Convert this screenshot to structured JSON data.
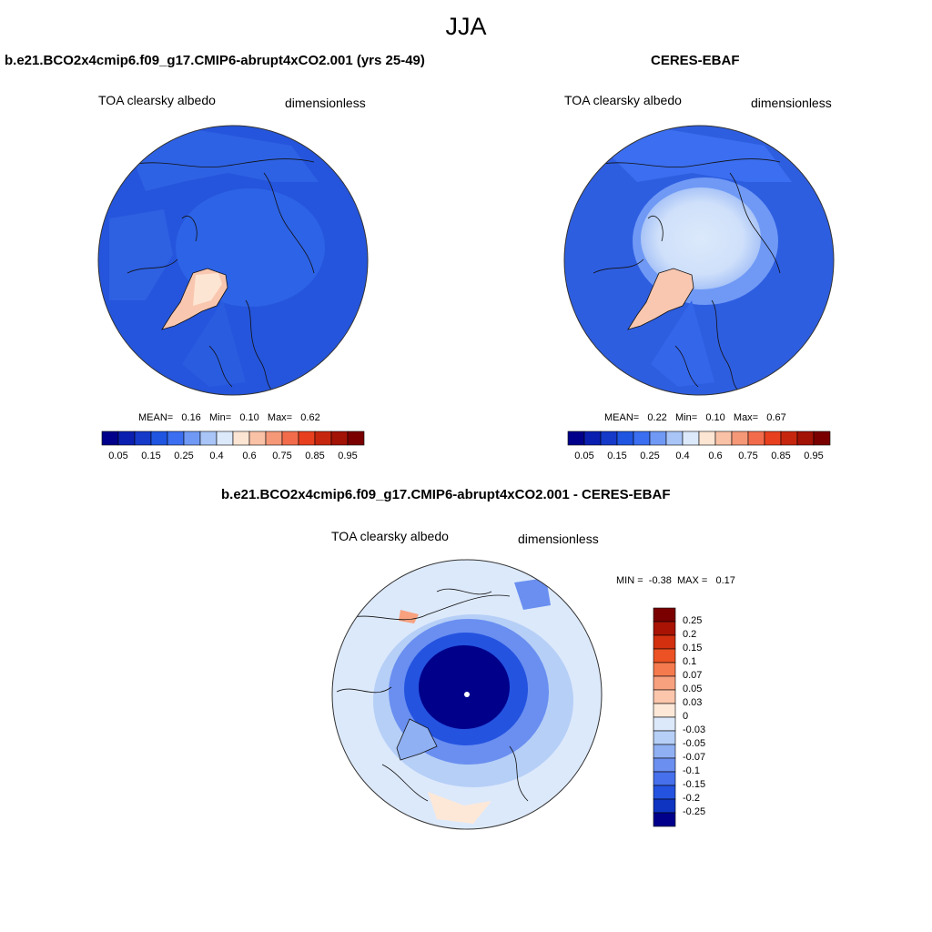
{
  "figure": {
    "title": "JJA"
  },
  "panels": [
    {
      "id": "model",
      "title": "b.e21.BCO2x4cmip6.f09_g17.CMIP6-abrupt4xCO2.001 (yrs 25-49)",
      "left_label": "TOA clearsky albedo",
      "right_label": "dimensionless",
      "stats": {
        "mean_label": "MEAN=",
        "mean": "0.16",
        "min_label": "Min=",
        "min": "0.10",
        "max_label": "Max=",
        "max": "0.62"
      }
    },
    {
      "id": "obs",
      "title": "CERES-EBAF",
      "left_label": "TOA clearsky albedo",
      "right_label": "dimensionless",
      "stats": {
        "mean_label": "MEAN=",
        "mean": "0.22",
        "min_label": "Min=",
        "min": "0.10",
        "max_label": "Max=",
        "max": "0.67"
      }
    }
  ],
  "diff": {
    "title": "b.e21.BCO2x4cmip6.f09_g17.CMIP6-abrupt4xCO2.001 - CERES-EBAF",
    "left_label": "TOA clearsky albedo",
    "right_label": "dimensionless",
    "minmax": {
      "min_label": "MIN =",
      "min": "-0.38",
      "max_label": "MAX =",
      "max": "0.17"
    }
  },
  "abs_colorbar": {
    "ticks": [
      "0.05",
      "0.15",
      "0.25",
      "0.4",
      "0.6",
      "0.75",
      "0.85",
      "0.95"
    ],
    "colors": [
      "#00008b",
      "#0a1fb0",
      "#1539c8",
      "#1f55e0",
      "#3b6ef0",
      "#6f99f5",
      "#a9c4f7",
      "#dce9fb",
      "#fde5d3",
      "#f9c1a6",
      "#f59878",
      "#f26c4c",
      "#e8401f",
      "#c7260e",
      "#a21205",
      "#7a0000"
    ]
  },
  "diff_colorbar": {
    "ticks": [
      "0.25",
      "0.2",
      "0.15",
      "0.1",
      "0.07",
      "0.05",
      "0.03",
      "0",
      "-0.03",
      "-0.05",
      "-0.07",
      "-0.1",
      "-0.15",
      "-0.2",
      "-0.25"
    ],
    "colors": [
      "#7a0000",
      "#a81304",
      "#d2300e",
      "#ec5223",
      "#f57a4d",
      "#f8a17f",
      "#fbc6ab",
      "#fde8d8",
      "#dce9fb",
      "#b6cff7",
      "#8fb0f3",
      "#6a8ff0",
      "#4670ec",
      "#2453e0",
      "#0f34c2",
      "#00008b"
    ]
  },
  "map_colors": {
    "ocean_model": "#2555dc",
    "ocean_obs": "#2e5ee0",
    "diff_background": "#dce9fb",
    "greenland": "#f9c7b0"
  }
}
